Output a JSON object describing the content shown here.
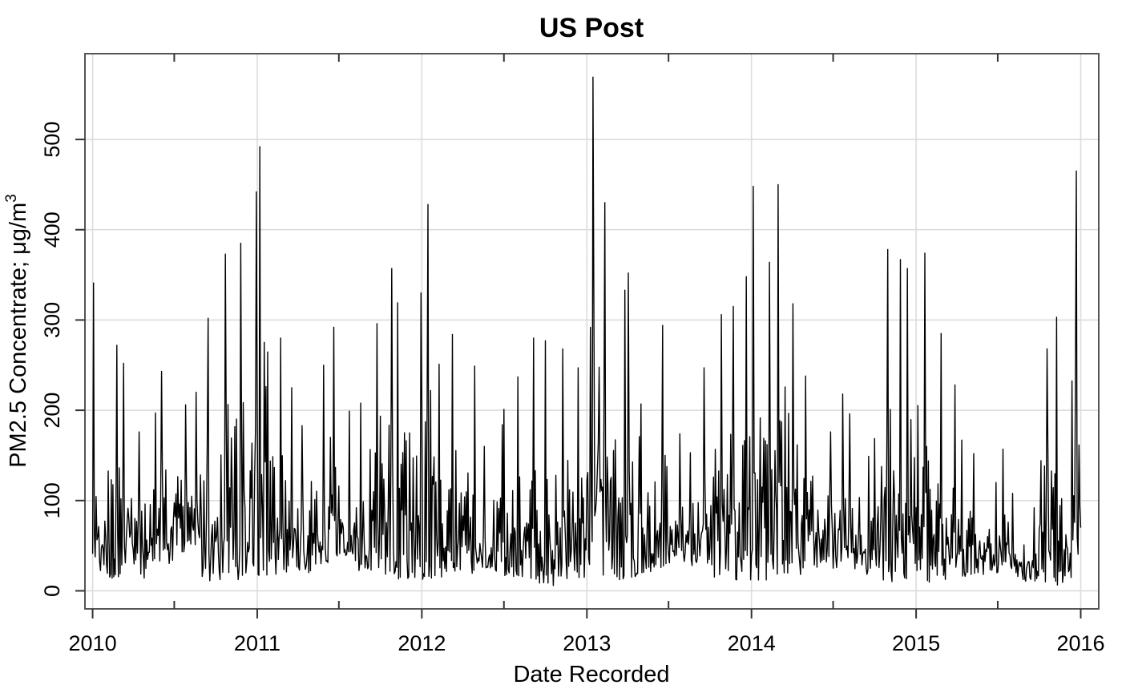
{
  "chart_data": {
    "type": "line",
    "title": "US Post",
    "xlabel": "Date Recorded",
    "ylabel": "PM2.5 Concentrate; μg/m",
    "ylabel_superscript": "3",
    "x_range": [
      "2009-12-15",
      "2016-02-10"
    ],
    "ylim": [
      -20,
      595
    ],
    "x_ticks": [
      "2010",
      "2011",
      "2012",
      "2013",
      "2014",
      "2015",
      "2016"
    ],
    "y_ticks": [
      0,
      100,
      200,
      300,
      400,
      500
    ],
    "x_minor_ticks": [
      "2010-07",
      "2011-07",
      "2012-07",
      "2013-07",
      "2014-07",
      "2015-07"
    ],
    "grid": true,
    "series": [
      {
        "x": [
          "2010-01",
          "2010-02",
          "2010-03",
          "2010-04",
          "2010-05",
          "2010-06",
          "2010-07",
          "2010-08",
          "2010-09",
          "2010-10",
          "2010-11",
          "2010-12",
          "2011-01",
          "2011-02",
          "2011-03",
          "2011-04",
          "2011-05",
          "2011-06",
          "2011-07",
          "2011-08",
          "2011-09",
          "2011-10",
          "2011-11",
          "2011-12",
          "2012-01",
          "2012-02",
          "2012-03",
          "2012-04",
          "2012-05",
          "2012-06",
          "2012-07",
          "2012-08",
          "2012-09",
          "2012-10",
          "2012-11",
          "2012-12",
          "2013-01",
          "2013-02",
          "2013-03",
          "2013-04",
          "2013-05",
          "2013-06",
          "2013-07",
          "2013-08",
          "2013-09",
          "2013-10",
          "2013-11",
          "2013-12",
          "2014-01",
          "2014-02",
          "2014-03",
          "2014-04",
          "2014-05",
          "2014-06",
          "2014-07",
          "2014-08",
          "2014-09",
          "2014-10",
          "2014-11",
          "2014-12",
          "2015-01",
          "2015-02",
          "2015-03",
          "2015-04",
          "2015-05",
          "2015-06",
          "2015-07",
          "2015-08",
          "2015-09",
          "2015-10",
          "2015-11",
          "2015-12"
        ],
        "high": [
          341,
          272,
          252,
          176,
          197,
          243,
          206,
          220,
          302,
          373,
          385,
          442,
          492,
          280,
          225,
          183,
          250,
          292,
          199,
          208,
          296,
          357,
          319,
          330,
          428,
          251,
          284,
          249,
          160,
          184,
          201,
          237,
          280,
          277,
          268,
          247,
          569,
          430,
          333,
          352,
          207,
          294,
          174,
          153,
          247,
          306,
          315,
          348,
          448,
          364,
          450,
          318,
          238,
          176,
          218,
          196,
          149,
          378,
          367,
          357,
          374,
          285,
          228,
          167,
          152,
          120,
          157,
          108,
          92,
          268,
          303,
          465
        ],
        "low": [
          20,
          13,
          17,
          13,
          30,
          25,
          43,
          50,
          10,
          12,
          12,
          15,
          14,
          12,
          20,
          18,
          25,
          30,
          35,
          20,
          15,
          12,
          13,
          10,
          12,
          15,
          20,
          18,
          25,
          20,
          15,
          13,
          8,
          5,
          10,
          12,
          18,
          15,
          12,
          15,
          20,
          25,
          30,
          28,
          20,
          15,
          12,
          10,
          8,
          12,
          15,
          18,
          25,
          30,
          25,
          22,
          18,
          12,
          10,
          8,
          8,
          10,
          12,
          15,
          18,
          20,
          15,
          12,
          10,
          8,
          6,
          7
        ],
        "end": 70
      }
    ]
  }
}
